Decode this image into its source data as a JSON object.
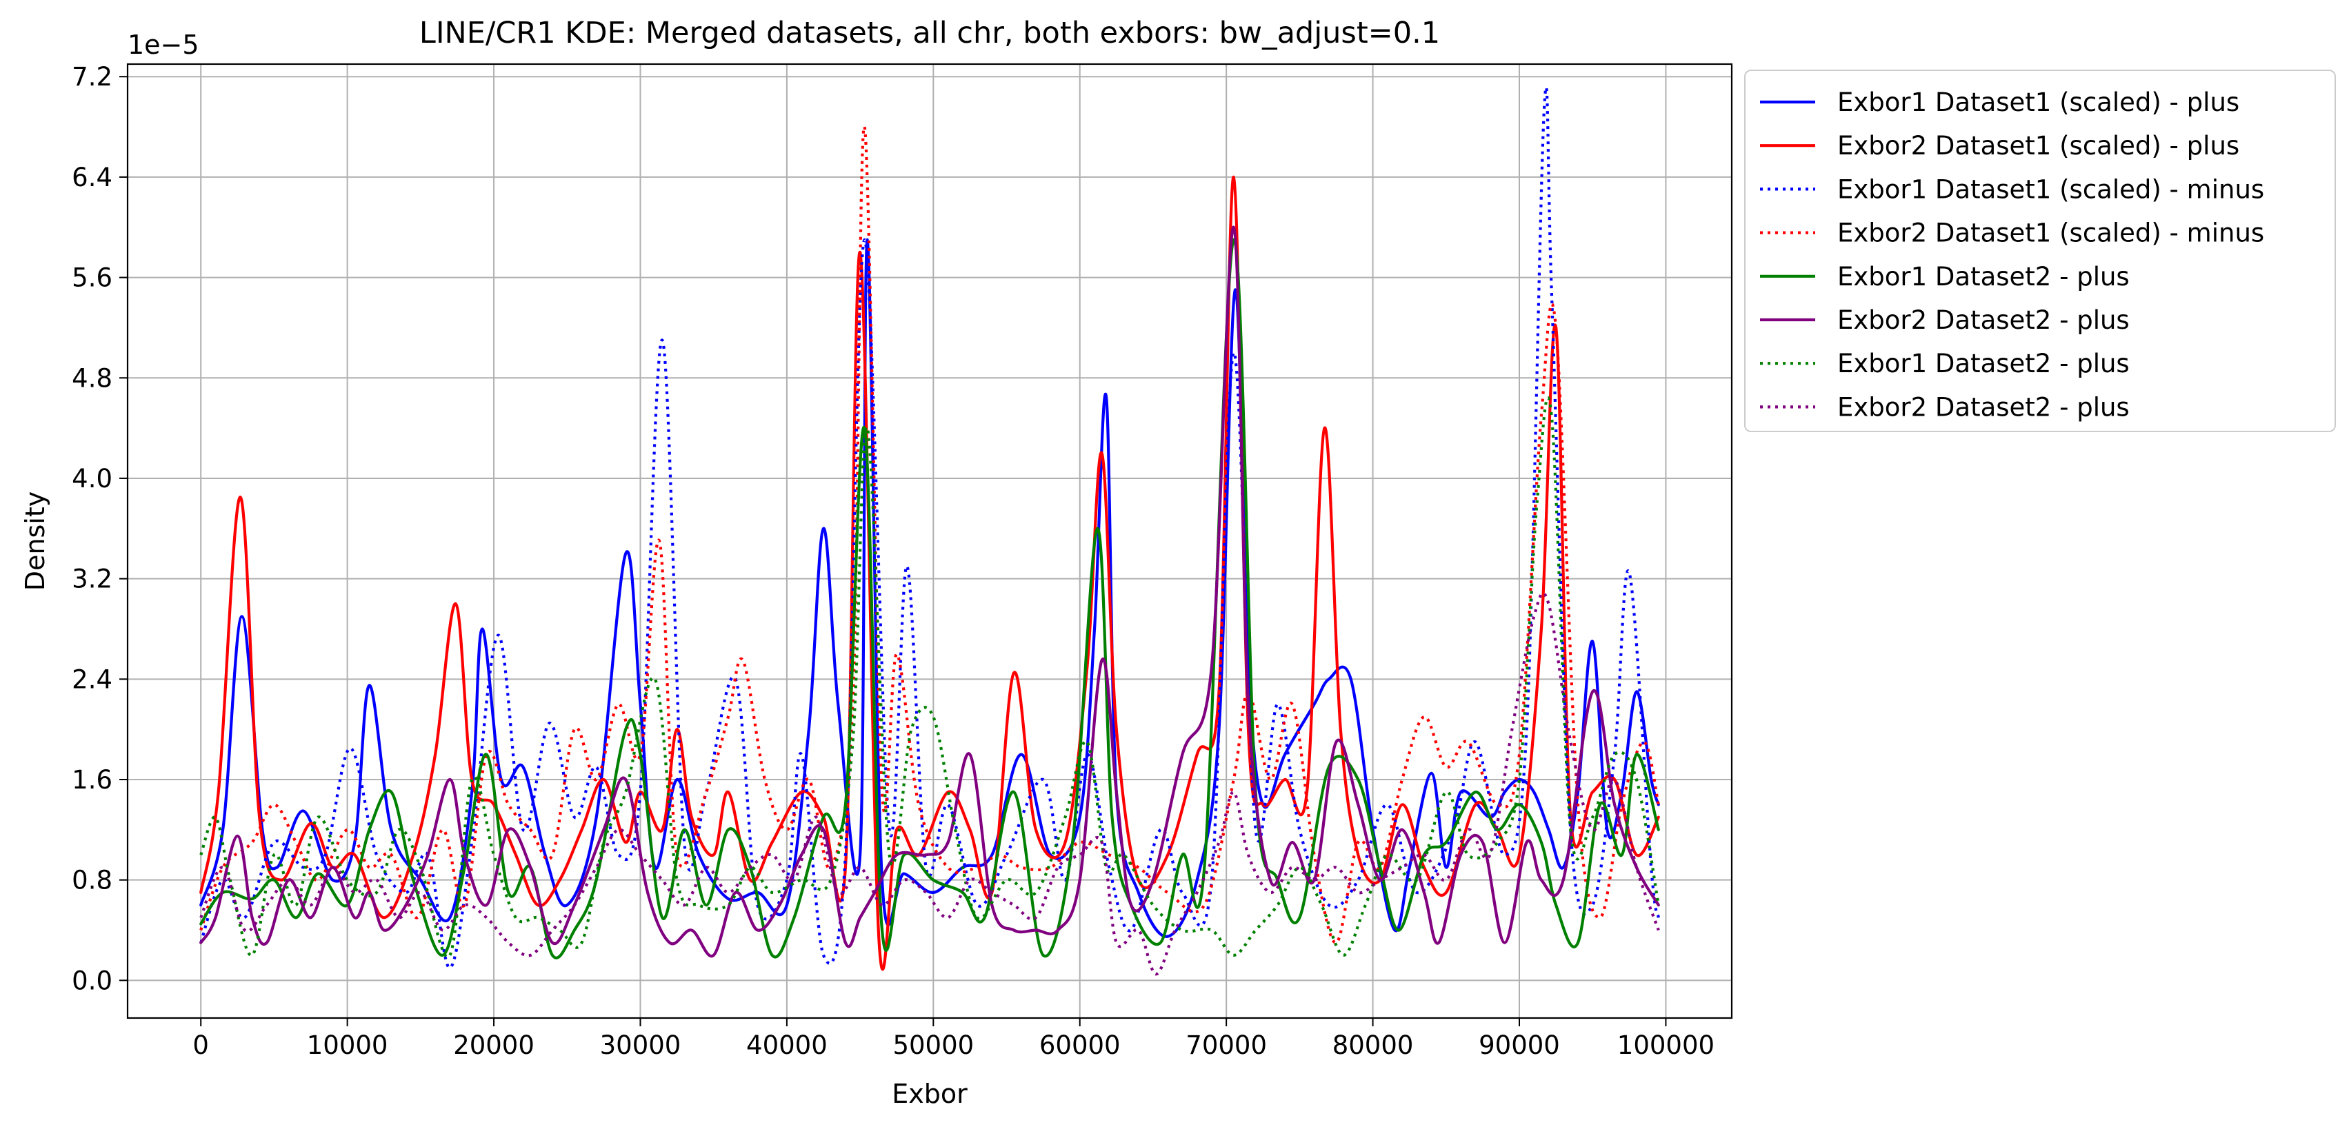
{
  "chart_data": {
    "type": "line",
    "title": "LINE/CR1 KDE: Merged datasets, all chr, both exbors: bw_adjust=0.1",
    "xlabel": "Exbor",
    "ylabel": "Density",
    "offset_label": "1e−5",
    "xlim": [
      -5000,
      104500
    ],
    "ylim": [
      -0.3,
      7.3
    ],
    "x_ticks": [
      0,
      10000,
      20000,
      30000,
      40000,
      50000,
      60000,
      70000,
      80000,
      90000,
      100000
    ],
    "x_tick_labels": [
      "0",
      "10000",
      "20000",
      "30000",
      "40000",
      "50000",
      "60000",
      "70000",
      "80000",
      "90000",
      "100000"
    ],
    "y_ticks": [
      0.0,
      0.8,
      1.6,
      2.4,
      3.2,
      4.0,
      4.8,
      5.6,
      6.4,
      7.2
    ],
    "y_tick_labels": [
      "0.0",
      "0.8",
      "1.6",
      "2.4",
      "3.2",
      "4.0",
      "4.8",
      "5.6",
      "6.4",
      "7.2"
    ],
    "grid": true,
    "legend_position": "outside-right-top",
    "series": [
      {
        "name": "Exbor1 Dataset1 (scaled) - plus",
        "color": "#0000ff",
        "style": "solid",
        "x": [
          0,
          1500,
          2800,
          4200,
          5200,
          7000,
          9000,
          10500,
          11500,
          13000,
          15000,
          17000,
          18500,
          19200,
          20500,
          22000,
          23500,
          25000,
          27000,
          29000,
          30000,
          31000,
          32500,
          34000,
          36000,
          38000,
          40000,
          41500,
          42500,
          43500,
          45000,
          45500,
          46500,
          48000,
          50000,
          52000,
          54000,
          56000,
          58000,
          60000,
          61000,
          61800,
          62500,
          64000,
          66000,
          68000,
          69500,
          70600,
          71500,
          72500,
          74000,
          76000,
          77000,
          78500,
          80000,
          81500,
          82500,
          84000,
          85000,
          86000,
          88000,
          89000,
          90000,
          91000,
          92000,
          93000,
          94000,
          95000,
          96000,
          97000,
          98000,
          99000,
          99500
        ],
        "y": [
          0.6,
          1.2,
          2.9,
          1.2,
          0.9,
          1.35,
          0.8,
          1.1,
          2.35,
          1.2,
          0.8,
          0.5,
          1.5,
          2.8,
          1.6,
          1.7,
          1.0,
          0.6,
          1.3,
          3.4,
          2.2,
          0.9,
          1.6,
          1.0,
          0.65,
          0.7,
          0.6,
          2.0,
          3.6,
          2.2,
          1.0,
          5.9,
          0.8,
          0.85,
          0.7,
          0.9,
          1.0,
          1.8,
          1.0,
          1.3,
          2.8,
          4.65,
          1.5,
          0.7,
          0.35,
          0.8,
          2.0,
          5.5,
          2.5,
          1.4,
          1.8,
          2.2,
          2.4,
          2.4,
          1.2,
          0.4,
          0.9,
          1.65,
          0.9,
          1.5,
          1.3,
          1.5,
          1.6,
          1.5,
          1.2,
          0.9,
          1.5,
          2.7,
          1.2,
          1.5,
          2.3,
          1.6,
          1.4
        ]
      },
      {
        "name": "Exbor2 Dataset1 (scaled) - plus",
        "color": "#ff0000",
        "style": "solid",
        "x": [
          0,
          1200,
          2700,
          4000,
          5500,
          7500,
          9000,
          10500,
          12500,
          14500,
          16000,
          17400,
          18500,
          20000,
          21500,
          23000,
          24500,
          26000,
          27500,
          29000,
          30000,
          31500,
          32500,
          33500,
          35000,
          36000,
          37500,
          39000,
          41000,
          42500,
          44000,
          45000,
          46300,
          47500,
          49000,
          51000,
          52500,
          54000,
          55500,
          57000,
          59000,
          60500,
          61500,
          62500,
          64000,
          66000,
          68000,
          69500,
          70500,
          71500,
          72500,
          74000,
          75500,
          76700,
          77800,
          79000,
          80500,
          82000,
          83500,
          85000,
          87000,
          88500,
          90000,
          91500,
          92500,
          93500,
          95000,
          96500,
          98000,
          99500
        ],
        "y": [
          0.7,
          1.5,
          3.85,
          1.3,
          0.8,
          1.25,
          0.9,
          1.0,
          0.5,
          1.0,
          1.8,
          3.0,
          1.6,
          1.4,
          1.0,
          0.6,
          0.8,
          1.2,
          1.6,
          1.1,
          1.5,
          1.2,
          2.0,
          1.3,
          1.0,
          1.5,
          0.8,
          1.1,
          1.5,
          1.3,
          0.9,
          5.8,
          0.3,
          1.2,
          1.0,
          1.5,
          1.2,
          0.7,
          2.45,
          1.2,
          1.1,
          2.5,
          4.2,
          2.0,
          0.8,
          1.0,
          1.8,
          2.3,
          6.4,
          2.0,
          1.4,
          1.6,
          1.5,
          4.4,
          2.0,
          1.0,
          0.8,
          1.4,
          0.9,
          0.7,
          1.4,
          1.2,
          1.0,
          2.8,
          5.2,
          1.3,
          1.5,
          1.6,
          1.0,
          1.3
        ]
      },
      {
        "name": "Exbor1 Dataset1 (scaled) - minus",
        "color": "#0000ff",
        "style": "dotted",
        "x": [
          0,
          1500,
          3000,
          5000,
          7000,
          8500,
          10200,
          12000,
          14000,
          15500,
          17000,
          18500,
          20300,
          22000,
          23800,
          25500,
          27000,
          28500,
          30000,
          31500,
          33000,
          34500,
          36500,
          38000,
          40000,
          41000,
          42500,
          44000,
          45300,
          47000,
          48200,
          49500,
          51000,
          53000,
          55000,
          57500,
          59000,
          60500,
          62000,
          63500,
          65500,
          67000,
          69000,
          70500,
          72000,
          73500,
          75000,
          77000,
          79000,
          81000,
          83000,
          85500,
          87000,
          89000,
          90500,
          91700,
          92200,
          93500,
          95000,
          96500,
          97500,
          99000,
          99500
        ],
        "y": [
          0.3,
          0.8,
          0.5,
          1.1,
          0.9,
          1.0,
          1.85,
          1.0,
          0.7,
          1.0,
          0.1,
          1.1,
          2.75,
          1.2,
          2.05,
          1.3,
          1.7,
          1.0,
          1.5,
          5.1,
          1.1,
          1.5,
          2.4,
          0.6,
          0.8,
          1.8,
          0.2,
          1.0,
          5.9,
          1.2,
          3.3,
          0.9,
          1.4,
          0.6,
          1.0,
          1.6,
          0.8,
          1.8,
          0.9,
          0.4,
          1.2,
          0.7,
          0.8,
          5.0,
          1.2,
          2.2,
          1.2,
          0.6,
          0.8,
          1.4,
          0.7,
          1.2,
          1.9,
          1.0,
          2.0,
          6.95,
          5.5,
          1.2,
          0.6,
          1.8,
          3.25,
          0.9,
          0.5
        ]
      },
      {
        "name": "Exbor2 Dataset1 (scaled) - minus",
        "color": "#ff0000",
        "style": "dotted",
        "x": [
          0,
          1500,
          3500,
          5000,
          6500,
          8000,
          10000,
          11500,
          13000,
          14800,
          16500,
          18000,
          19500,
          21000,
          22500,
          24000,
          25500,
          27000,
          28500,
          30000,
          31300,
          32500,
          34500,
          36000,
          37000,
          38500,
          40000,
          41500,
          43000,
          44500,
          45300,
          46500,
          47500,
          49000,
          51000,
          53000,
          54500,
          56000,
          58000,
          60000,
          62000,
          64000,
          66000,
          68500,
          70500,
          71500,
          73000,
          74500,
          76000,
          77500,
          79000,
          80500,
          82000,
          83500,
          85000,
          86500,
          88500,
          90000,
          91500,
          92500,
          94000,
          95500,
          97000,
          98500,
          99500
        ],
        "y": [
          0.4,
          0.9,
          1.1,
          1.4,
          1.1,
          0.8,
          1.2,
          0.9,
          1.0,
          0.5,
          1.2,
          0.6,
          1.8,
          1.4,
          1.2,
          1.0,
          2.0,
          1.6,
          2.2,
          1.8,
          3.5,
          1.0,
          1.5,
          2.1,
          2.55,
          1.6,
          1.2,
          1.6,
          0.9,
          2.2,
          6.8,
          1.5,
          2.6,
          1.4,
          0.9,
          0.9,
          1.0,
          0.9,
          0.9,
          1.1,
          1.0,
          0.9,
          0.7,
          0.6,
          1.6,
          2.3,
          1.6,
          2.2,
          1.0,
          0.3,
          1.1,
          0.9,
          1.6,
          2.1,
          1.7,
          1.9,
          1.4,
          1.8,
          4.5,
          5.2,
          1.4,
          0.5,
          1.4,
          1.9,
          1.4
        ]
      },
      {
        "name": "Exbor1 Dataset2 - plus",
        "color": "#008000",
        "style": "solid",
        "x": [
          0,
          1500,
          3500,
          5000,
          6500,
          8000,
          10000,
          11500,
          13000,
          14500,
          16500,
          18000,
          19500,
          21000,
          22500,
          24000,
          25500,
          27000,
          29000,
          30000,
          31500,
          33000,
          34500,
          36000,
          37500,
          39000,
          40500,
          42500,
          44000,
          45300,
          46500,
          48000,
          50000,
          52000,
          53500,
          55500,
          57500,
          59500,
          61200,
          62200,
          63500,
          65500,
          67000,
          68500,
          70500,
          72000,
          73500,
          75000,
          77000,
          79000,
          80500,
          81800,
          83500,
          85000,
          87000,
          88500,
          90000,
          91500,
          92500,
          94000,
          95500,
          97000,
          98000,
          99500
        ],
        "y": [
          0.45,
          0.7,
          0.65,
          0.8,
          0.5,
          0.85,
          0.6,
          1.2,
          1.5,
          0.8,
          0.2,
          0.9,
          1.8,
          0.7,
          0.9,
          0.2,
          0.4,
          0.8,
          2.0,
          1.8,
          0.5,
          1.2,
          0.6,
          1.2,
          0.9,
          0.2,
          0.5,
          1.3,
          1.4,
          4.4,
          0.4,
          1.0,
          0.8,
          0.7,
          0.5,
          1.5,
          0.2,
          1.1,
          3.6,
          1.3,
          0.6,
          0.3,
          1.0,
          0.9,
          5.9,
          1.5,
          0.8,
          0.5,
          1.7,
          1.6,
          0.9,
          0.4,
          1.0,
          1.1,
          1.5,
          1.2,
          1.4,
          1.1,
          0.6,
          0.3,
          1.4,
          1.0,
          1.8,
          1.2
        ]
      },
      {
        "name": "Exbor2 Dataset2 - plus",
        "color": "#800080",
        "style": "solid",
        "x": [
          0,
          1000,
          2500,
          3500,
          4500,
          6000,
          7500,
          9000,
          10500,
          11500,
          12500,
          14000,
          15500,
          17000,
          18000,
          19500,
          21000,
          22500,
          24000,
          25500,
          27500,
          29000,
          30500,
          32000,
          33500,
          35000,
          36500,
          38000,
          39500,
          41000,
          42500,
          44000,
          45000,
          46000,
          47500,
          49500,
          51000,
          52500,
          54000,
          55500,
          57000,
          58500,
          60000,
          61500,
          62500,
          63500,
          65000,
          67000,
          69000,
          70500,
          71500,
          73000,
          74500,
          76000,
          77500,
          79000,
          80500,
          82000,
          83500,
          84500,
          86000,
          87500,
          89000,
          90500,
          91500,
          93000,
          95000,
          96500,
          98000,
          99500
        ],
        "y": [
          0.3,
          0.5,
          1.15,
          0.5,
          0.3,
          0.8,
          0.5,
          0.9,
          0.5,
          0.7,
          0.4,
          0.6,
          1.0,
          1.6,
          1.0,
          0.6,
          1.2,
          0.9,
          0.3,
          0.6,
          1.2,
          1.6,
          0.7,
          0.3,
          0.4,
          0.2,
          0.7,
          0.4,
          0.6,
          1.0,
          1.2,
          0.3,
          0.5,
          0.7,
          1.0,
          1.0,
          1.1,
          1.8,
          0.6,
          0.4,
          0.4,
          0.4,
          0.8,
          2.55,
          1.5,
          0.6,
          0.8,
          1.8,
          2.5,
          6.0,
          2.2,
          0.8,
          1.1,
          0.8,
          1.9,
          1.4,
          0.8,
          1.2,
          0.7,
          0.3,
          1.0,
          1.1,
          0.3,
          1.1,
          0.8,
          0.8,
          2.3,
          1.4,
          0.9,
          0.6
        ]
      },
      {
        "name": "Exbor1 Dataset2 - plus",
        "color": "#008000",
        "style": "dotted",
        "x": [
          0,
          1000,
          2000,
          3500,
          5000,
          6500,
          8000,
          10000,
          12000,
          13500,
          15000,
          17000,
          18500,
          20000,
          21500,
          23000,
          24500,
          26000,
          27500,
          29000,
          31000,
          32500,
          34000,
          36000,
          37500,
          39000,
          41000,
          43000,
          44500,
          45500,
          47000,
          48500,
          50000,
          51500,
          53000,
          55000,
          57000,
          59000,
          60500,
          61800,
          63000,
          65000,
          67000,
          69000,
          70500,
          72000,
          73500,
          75000,
          76500,
          78000,
          79500,
          81000,
          83000,
          85000,
          86500,
          88500,
          90000,
          91200,
          92200,
          93500,
          95000,
          96500,
          98000,
          99500
        ],
        "y": [
          1.0,
          1.3,
          0.8,
          0.2,
          1.0,
          0.6,
          1.3,
          0.8,
          0.7,
          1.2,
          0.9,
          0.2,
          1.6,
          1.0,
          0.5,
          0.5,
          0.4,
          0.3,
          1.1,
          1.5,
          2.4,
          0.8,
          0.6,
          0.6,
          0.9,
          0.7,
          0.8,
          0.8,
          1.9,
          4.4,
          1.0,
          2.0,
          2.1,
          1.2,
          0.5,
          0.8,
          0.7,
          1.3,
          1.9,
          0.9,
          1.0,
          0.6,
          0.4,
          0.4,
          0.2,
          0.4,
          0.6,
          0.9,
          0.6,
          0.2,
          0.6,
          1.0,
          0.8,
          1.5,
          1.0,
          1.1,
          1.6,
          3.8,
          4.5,
          1.2,
          1.3,
          1.8,
          1.6,
          0.6
        ]
      },
      {
        "name": "Exbor2 Dataset2 - plus",
        "color": "#800080",
        "style": "dotted",
        "x": [
          0,
          1500,
          3000,
          4500,
          6000,
          7500,
          9000,
          10500,
          12000,
          13500,
          15000,
          16500,
          18000,
          19500,
          21000,
          22500,
          24000,
          25500,
          27000,
          28500,
          30000,
          31500,
          33000,
          34500,
          36000,
          37500,
          39000,
          40500,
          42000,
          43500,
          45000,
          46500,
          48000,
          49500,
          51000,
          52500,
          54000,
          55500,
          57000,
          58500,
          60000,
          61500,
          62500,
          64000,
          65200,
          66500,
          68000,
          69500,
          70500,
          71500,
          73000,
          74500,
          76000,
          77500,
          79000,
          80500,
          82000,
          83500,
          85000,
          86500,
          88000,
          89500,
          91000,
          92000,
          93500,
          95000,
          96500,
          98000,
          99500
        ],
        "y": [
          0.5,
          0.9,
          0.4,
          0.6,
          0.8,
          0.6,
          0.9,
          0.7,
          0.8,
          0.5,
          0.7,
          0.4,
          0.6,
          0.5,
          0.3,
          0.2,
          0.4,
          0.6,
          0.9,
          1.2,
          1.0,
          0.8,
          0.6,
          0.9,
          0.7,
          0.9,
          1.0,
          0.8,
          1.3,
          0.7,
          0.9,
          0.6,
          0.8,
          0.7,
          0.5,
          0.8,
          0.7,
          0.6,
          0.5,
          0.9,
          1.0,
          1.1,
          0.3,
          0.4,
          0.05,
          0.4,
          0.7,
          1.1,
          1.5,
          1.0,
          0.7,
          0.9,
          0.8,
          0.9,
          0.7,
          0.8,
          0.9,
          1.0,
          0.8,
          1.2,
          1.0,
          2.0,
          2.9,
          3.0,
          1.9,
          1.2,
          1.6,
          0.9,
          0.4
        ]
      }
    ]
  }
}
